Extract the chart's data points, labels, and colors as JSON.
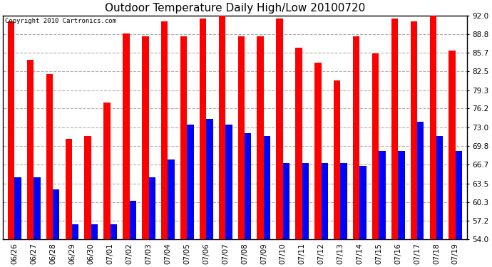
{
  "title": "Outdoor Temperature Daily High/Low 20100720",
  "copyright": "Copyright 2010 Cartronics.com",
  "dates": [
    "06/26",
    "06/27",
    "06/28",
    "06/29",
    "06/30",
    "07/01",
    "07/02",
    "07/03",
    "07/04",
    "07/05",
    "07/06",
    "07/07",
    "07/08",
    "07/09",
    "07/10",
    "07/11",
    "07/12",
    "07/13",
    "07/14",
    "07/15",
    "07/16",
    "07/17",
    "07/18",
    "07/19"
  ],
  "highs": [
    91.0,
    84.5,
    82.0,
    71.0,
    71.5,
    77.2,
    89.0,
    88.5,
    91.0,
    88.5,
    91.5,
    92.0,
    88.5,
    88.5,
    91.5,
    86.5,
    84.0,
    81.0,
    88.5,
    85.5,
    91.5,
    91.0,
    92.0,
    86.0
  ],
  "lows": [
    64.5,
    64.5,
    62.5,
    56.5,
    56.5,
    56.5,
    60.5,
    64.5,
    67.5,
    73.5,
    74.5,
    73.5,
    72.0,
    71.5,
    67.0,
    67.0,
    67.0,
    67.0,
    66.5,
    69.0,
    69.0,
    74.0,
    71.5,
    69.0
  ],
  "high_color": "#ff0000",
  "low_color": "#0000ff",
  "bg_color": "#ffffff",
  "plot_bg_color": "#ffffff",
  "grid_color": "#b0b0b0",
  "ymin": 54.0,
  "ymax": 92.0,
  "yticks": [
    54.0,
    57.2,
    60.3,
    63.5,
    66.7,
    69.8,
    73.0,
    76.2,
    79.3,
    82.5,
    85.7,
    88.8,
    92.0
  ],
  "title_fontsize": 11,
  "tick_fontsize": 7.5,
  "bar_width": 0.35
}
